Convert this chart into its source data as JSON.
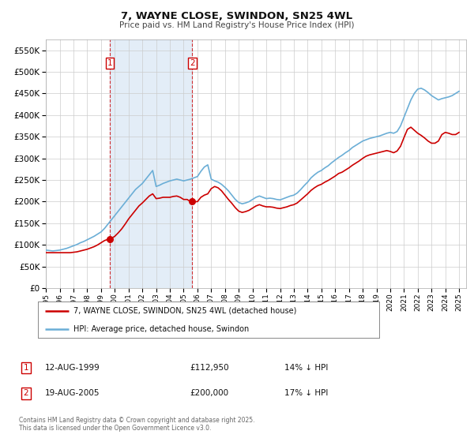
{
  "title": "7, WAYNE CLOSE, SWINDON, SN25 4WL",
  "subtitle": "Price paid vs. HM Land Registry's House Price Index (HPI)",
  "background_color": "#ffffff",
  "plot_bg_color": "#ffffff",
  "grid_color": "#cccccc",
  "legend_label_red": "7, WAYNE CLOSE, SWINDON, SN25 4WL (detached house)",
  "legend_label_blue": "HPI: Average price, detached house, Swindon",
  "purchase1_date": "12-AUG-1999",
  "purchase1_price": "£112,950",
  "purchase1_hpi": "14% ↓ HPI",
  "purchase2_date": "19-AUG-2005",
  "purchase2_price": "£200,000",
  "purchase2_hpi": "17% ↓ HPI",
  "footer": "Contains HM Land Registry data © Crown copyright and database right 2025.\nThis data is licensed under the Open Government Licence v3.0.",
  "purchase1_year": 1999.62,
  "purchase2_year": 2005.63,
  "purchase1_value": 112950,
  "purchase2_value": 200000,
  "ylim": [
    0,
    575000
  ],
  "xlim_start": 1995.0,
  "xlim_end": 2025.5,
  "hpi_x": [
    1995.0,
    1995.25,
    1995.5,
    1995.75,
    1996.0,
    1996.25,
    1996.5,
    1996.75,
    1997.0,
    1997.25,
    1997.5,
    1997.75,
    1998.0,
    1998.25,
    1998.5,
    1998.75,
    1999.0,
    1999.25,
    1999.5,
    1999.75,
    2000.0,
    2000.25,
    2000.5,
    2000.75,
    2001.0,
    2001.25,
    2001.5,
    2001.75,
    2002.0,
    2002.25,
    2002.5,
    2002.75,
    2003.0,
    2003.25,
    2003.5,
    2003.75,
    2004.0,
    2004.25,
    2004.5,
    2004.75,
    2005.0,
    2005.25,
    2005.5,
    2005.75,
    2006.0,
    2006.25,
    2006.5,
    2006.75,
    2007.0,
    2007.25,
    2007.5,
    2007.75,
    2008.0,
    2008.25,
    2008.5,
    2008.75,
    2009.0,
    2009.25,
    2009.5,
    2009.75,
    2010.0,
    2010.25,
    2010.5,
    2010.75,
    2011.0,
    2011.25,
    2011.5,
    2011.75,
    2012.0,
    2012.25,
    2012.5,
    2012.75,
    2013.0,
    2013.25,
    2013.5,
    2013.75,
    2014.0,
    2014.25,
    2014.5,
    2014.75,
    2015.0,
    2015.25,
    2015.5,
    2015.75,
    2016.0,
    2016.25,
    2016.5,
    2016.75,
    2017.0,
    2017.25,
    2017.5,
    2017.75,
    2018.0,
    2018.25,
    2018.5,
    2018.75,
    2019.0,
    2019.25,
    2019.5,
    2019.75,
    2020.0,
    2020.25,
    2020.5,
    2020.75,
    2021.0,
    2021.25,
    2021.5,
    2021.75,
    2022.0,
    2022.25,
    2022.5,
    2022.75,
    2023.0,
    2023.25,
    2023.5,
    2023.75,
    2024.0,
    2024.25,
    2024.5,
    2024.75,
    2025.0
  ],
  "hpi_y": [
    88000,
    87000,
    86000,
    87000,
    88000,
    90000,
    92000,
    95000,
    98000,
    101000,
    105000,
    108000,
    112000,
    116000,
    120000,
    125000,
    130000,
    138000,
    148000,
    158000,
    168000,
    178000,
    188000,
    198000,
    208000,
    218000,
    228000,
    235000,
    242000,
    252000,
    262000,
    272000,
    235000,
    238000,
    242000,
    245000,
    248000,
    250000,
    252000,
    250000,
    248000,
    250000,
    252000,
    255000,
    258000,
    270000,
    280000,
    285000,
    252000,
    248000,
    245000,
    240000,
    233000,
    225000,
    215000,
    205000,
    198000,
    195000,
    197000,
    200000,
    205000,
    210000,
    213000,
    210000,
    207000,
    208000,
    207000,
    205000,
    204000,
    207000,
    210000,
    213000,
    215000,
    220000,
    228000,
    237000,
    245000,
    255000,
    262000,
    268000,
    272000,
    278000,
    283000,
    290000,
    296000,
    302000,
    307000,
    313000,
    318000,
    325000,
    330000,
    335000,
    340000,
    343000,
    346000,
    348000,
    350000,
    352000,
    355000,
    358000,
    360000,
    358000,
    362000,
    375000,
    395000,
    415000,
    435000,
    450000,
    460000,
    462000,
    458000,
    452000,
    445000,
    440000,
    435000,
    438000,
    440000,
    442000,
    445000,
    450000,
    455000
  ],
  "red_line_x": [
    1995.0,
    1995.25,
    1995.5,
    1995.75,
    1996.0,
    1996.25,
    1996.5,
    1996.75,
    1997.0,
    1997.25,
    1997.5,
    1997.75,
    1998.0,
    1998.25,
    1998.5,
    1998.75,
    1999.0,
    1999.25,
    1999.5,
    1999.75,
    2000.0,
    2000.25,
    2000.5,
    2000.75,
    2001.0,
    2001.25,
    2001.5,
    2001.75,
    2002.0,
    2002.25,
    2002.5,
    2002.75,
    2003.0,
    2003.25,
    2003.5,
    2003.75,
    2004.0,
    2004.25,
    2004.5,
    2004.75,
    2005.0,
    2005.25,
    2005.5,
    2005.75,
    2006.0,
    2006.25,
    2006.5,
    2006.75,
    2007.0,
    2007.25,
    2007.5,
    2007.75,
    2008.0,
    2008.25,
    2008.5,
    2008.75,
    2009.0,
    2009.25,
    2009.5,
    2009.75,
    2010.0,
    2010.25,
    2010.5,
    2010.75,
    2011.0,
    2011.25,
    2011.5,
    2011.75,
    2012.0,
    2012.25,
    2012.5,
    2012.75,
    2013.0,
    2013.25,
    2013.5,
    2013.75,
    2014.0,
    2014.25,
    2014.5,
    2014.75,
    2015.0,
    2015.25,
    2015.5,
    2015.75,
    2016.0,
    2016.25,
    2016.5,
    2016.75,
    2017.0,
    2017.25,
    2017.5,
    2017.75,
    2018.0,
    2018.25,
    2018.5,
    2018.75,
    2019.0,
    2019.25,
    2019.5,
    2019.75,
    2020.0,
    2020.25,
    2020.5,
    2020.75,
    2021.0,
    2021.25,
    2021.5,
    2021.75,
    2022.0,
    2022.25,
    2022.5,
    2022.75,
    2023.0,
    2023.25,
    2023.5,
    2023.75,
    2024.0,
    2024.25,
    2024.5,
    2024.75,
    2025.0
  ],
  "red_line_y": [
    82000,
    82000,
    82000,
    82000,
    82000,
    82000,
    82000,
    82000,
    83000,
    84000,
    86000,
    88000,
    90000,
    93000,
    96000,
    100000,
    105000,
    110000,
    112950,
    115000,
    120000,
    128000,
    137000,
    148000,
    160000,
    170000,
    180000,
    190000,
    197000,
    205000,
    213000,
    218000,
    207000,
    208000,
    210000,
    210000,
    210000,
    212000,
    213000,
    210000,
    205000,
    205000,
    200000,
    200000,
    200000,
    210000,
    215000,
    218000,
    230000,
    235000,
    232000,
    225000,
    215000,
    205000,
    196000,
    186000,
    178000,
    175000,
    177000,
    180000,
    185000,
    190000,
    193000,
    190000,
    188000,
    188000,
    187000,
    185000,
    184000,
    186000,
    188000,
    191000,
    193000,
    197000,
    204000,
    211000,
    218000,
    226000,
    232000,
    237000,
    240000,
    245000,
    249000,
    254000,
    259000,
    265000,
    268000,
    273000,
    278000,
    284000,
    289000,
    294000,
    300000,
    305000,
    308000,
    310000,
    312000,
    314000,
    316000,
    318000,
    316000,
    313000,
    317000,
    328000,
    348000,
    367000,
    372000,
    365000,
    358000,
    353000,
    347000,
    340000,
    335000,
    335000,
    340000,
    355000,
    360000,
    358000,
    355000,
    355000,
    360000
  ]
}
